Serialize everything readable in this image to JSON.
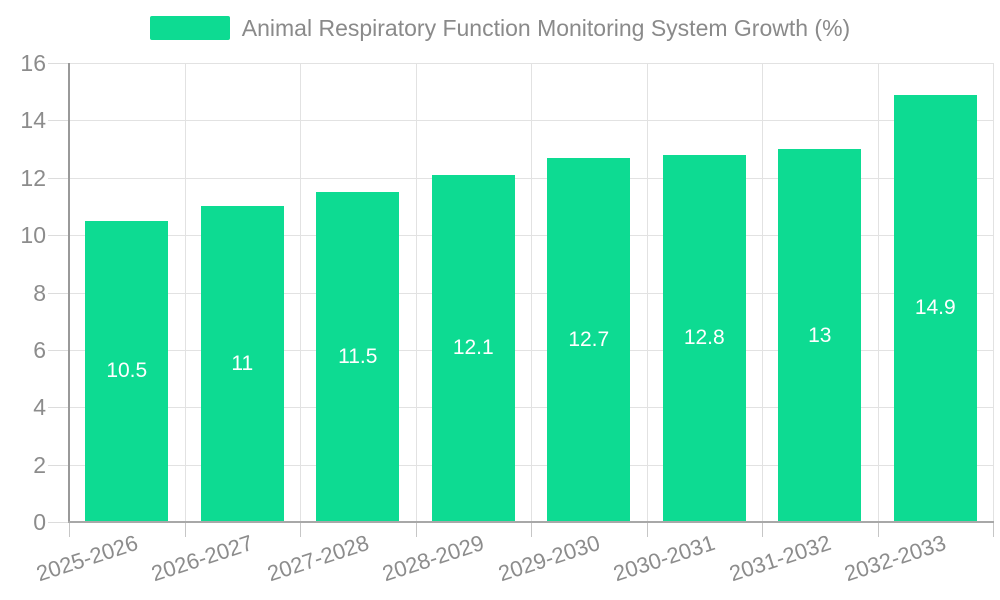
{
  "chart_data": {
    "type": "bar",
    "title": "Animal Respiratory Function Monitoring System Growth (%)",
    "legend": [
      "Animal Respiratory Function Monitoring System Growth (%)"
    ],
    "legend_position": "top",
    "categories": [
      "2025-2026",
      "2026-2027",
      "2027-2028",
      "2028-2029",
      "2029-2030",
      "2030-2031",
      "2031-2032",
      "2032-2033"
    ],
    "values": [
      10.5,
      11,
      11.5,
      12.1,
      12.7,
      12.8,
      13,
      14.9
    ],
    "value_labels": [
      "10.5",
      "11",
      "11.5",
      "12.1",
      "12.7",
      "12.8",
      "13",
      "14.9"
    ],
    "xlabel": "",
    "ylabel": "",
    "ylim": [
      0,
      16
    ],
    "ytick_step": 2,
    "yticks": [
      0,
      2,
      4,
      6,
      8,
      10,
      12,
      14,
      16
    ],
    "grid": true,
    "colors": {
      "bar": "#0ddb92",
      "bar_value_label": "#ffffff",
      "axis_text": "#8c8c8c",
      "legend_text": "#8a8a8a",
      "gridline": "#e2e2e2",
      "axis_line": "#999999",
      "background": "#ffffff"
    }
  }
}
